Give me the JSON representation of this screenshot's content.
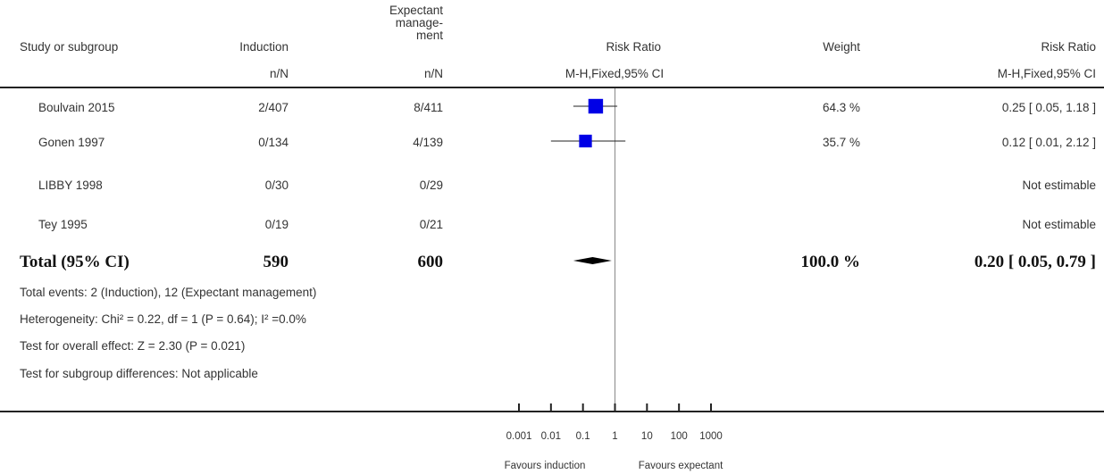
{
  "header": {
    "study_label": "Study or subgroup",
    "induction_label": "Induction",
    "expectant_label_1": "Expectant",
    "expectant_label_2": "manage-",
    "expectant_label_3": "ment",
    "rr_label": "Risk Ratio",
    "weight_label": "Weight",
    "rr_label_2": "Risk Ratio",
    "induction_sub": "n/N",
    "expectant_sub": "n/N",
    "method_label": "M-H,Fixed,95% CI",
    "method_label_2": "M-H,Fixed,95% CI"
  },
  "rows": [
    {
      "study": "Boulvain 2015",
      "induction": "2/407",
      "expectant": "8/411",
      "weight": "64.3 %",
      "ci_text": "0.25 [ 0.05, 1.18 ]"
    },
    {
      "study": "Gonen 1997",
      "induction": "0/134",
      "expectant": "4/139",
      "weight": "35.7 %",
      "ci_text": "0.12 [ 0.01, 2.12 ]"
    },
    {
      "study": "LIBBY 1998",
      "induction": "0/30",
      "expectant": "0/29",
      "weight": "",
      "ci_text": "Not estimable"
    },
    {
      "study": "Tey 1995",
      "induction": "0/19",
      "expectant": "0/21",
      "weight": "",
      "ci_text": "Not estimable"
    }
  ],
  "total": {
    "label": "Total (95% CI)",
    "induction": "590",
    "expectant": "600",
    "weight": "100.0 %",
    "ci_text": "0.20 [ 0.05, 0.79 ]"
  },
  "footnotes": {
    "events": "Total events: 2 (Induction), 12 (Expectant management)",
    "heterogeneity": "Heterogeneity: Chi² = 0.22, df = 1 (P = 0.64); I² =0.0%",
    "overall": "Test for overall effect: Z = 2.30 (P = 0.021)",
    "subgroup": "Test for subgroup differences: Not applicable"
  },
  "axis": {
    "tick_labels": [
      "0.001",
      "0.01",
      "0.1",
      "1",
      "10",
      "100",
      "1000"
    ],
    "favours_left": "Favours induction",
    "favours_right": "Favours expectant"
  },
  "colors": {
    "marker": "#0000e6",
    "text": "#333333",
    "rule": "#222222"
  },
  "chart_data": {
    "type": "forest",
    "x_scale": "log",
    "xlim": [
      0.001,
      1000
    ],
    "x_ticks": [
      0.001,
      0.01,
      0.1,
      1,
      10,
      100,
      1000
    ],
    "studies": [
      {
        "name": "Boulvain 2015",
        "rr": 0.25,
        "ci": [
          0.05,
          1.18
        ],
        "weight": 64.3
      },
      {
        "name": "Gonen 1997",
        "rr": 0.12,
        "ci": [
          0.01,
          2.12
        ],
        "weight": 35.7
      },
      {
        "name": "LIBBY 1998",
        "rr": null,
        "ci": null,
        "weight": null
      },
      {
        "name": "Tey 1995",
        "rr": null,
        "ci": null,
        "weight": null
      }
    ],
    "pooled": {
      "rr": 0.2,
      "ci": [
        0.05,
        0.79
      ],
      "weight": 100.0
    }
  }
}
